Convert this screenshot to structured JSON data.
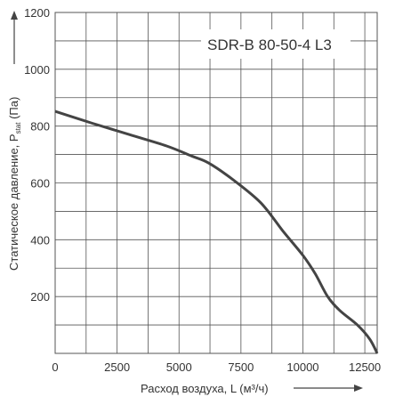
{
  "chart_data": {
    "type": "line",
    "title": "",
    "annotation": "SDR-B 80-50-4 L3",
    "xlabel": "Расход воздуха, L (м³/ч)",
    "ylabel_main": "Статическое давление, P",
    "ylabel_sub": "stat",
    "ylabel_unit": " (Па)",
    "xlim": [
      0,
      13000
    ],
    "ylim": [
      0,
      1200
    ],
    "x_ticks": [
      "0",
      "2500",
      "5000",
      "7500",
      "10000",
      "12500"
    ],
    "x_tick_values": [
      0,
      2500,
      5000,
      7500,
      10000,
      12500
    ],
    "y_ticks": [
      "200",
      "400",
      "600",
      "800",
      "1000",
      "1200"
    ],
    "y_tick_values": [
      200,
      400,
      600,
      800,
      1000,
      1200
    ],
    "grid": true,
    "line_color": "#444444",
    "series": [
      {
        "x": [
          0,
          1500,
          3000,
          4500,
          5500,
          6200,
          7200,
          8300,
          9200,
          10000,
          10500,
          11000,
          11500,
          12200,
          12700,
          13000
        ],
        "y": [
          852,
          810,
          770,
          730,
          695,
          670,
          610,
          530,
          430,
          345,
          280,
          200,
          150,
          100,
          50,
          0
        ]
      }
    ]
  }
}
